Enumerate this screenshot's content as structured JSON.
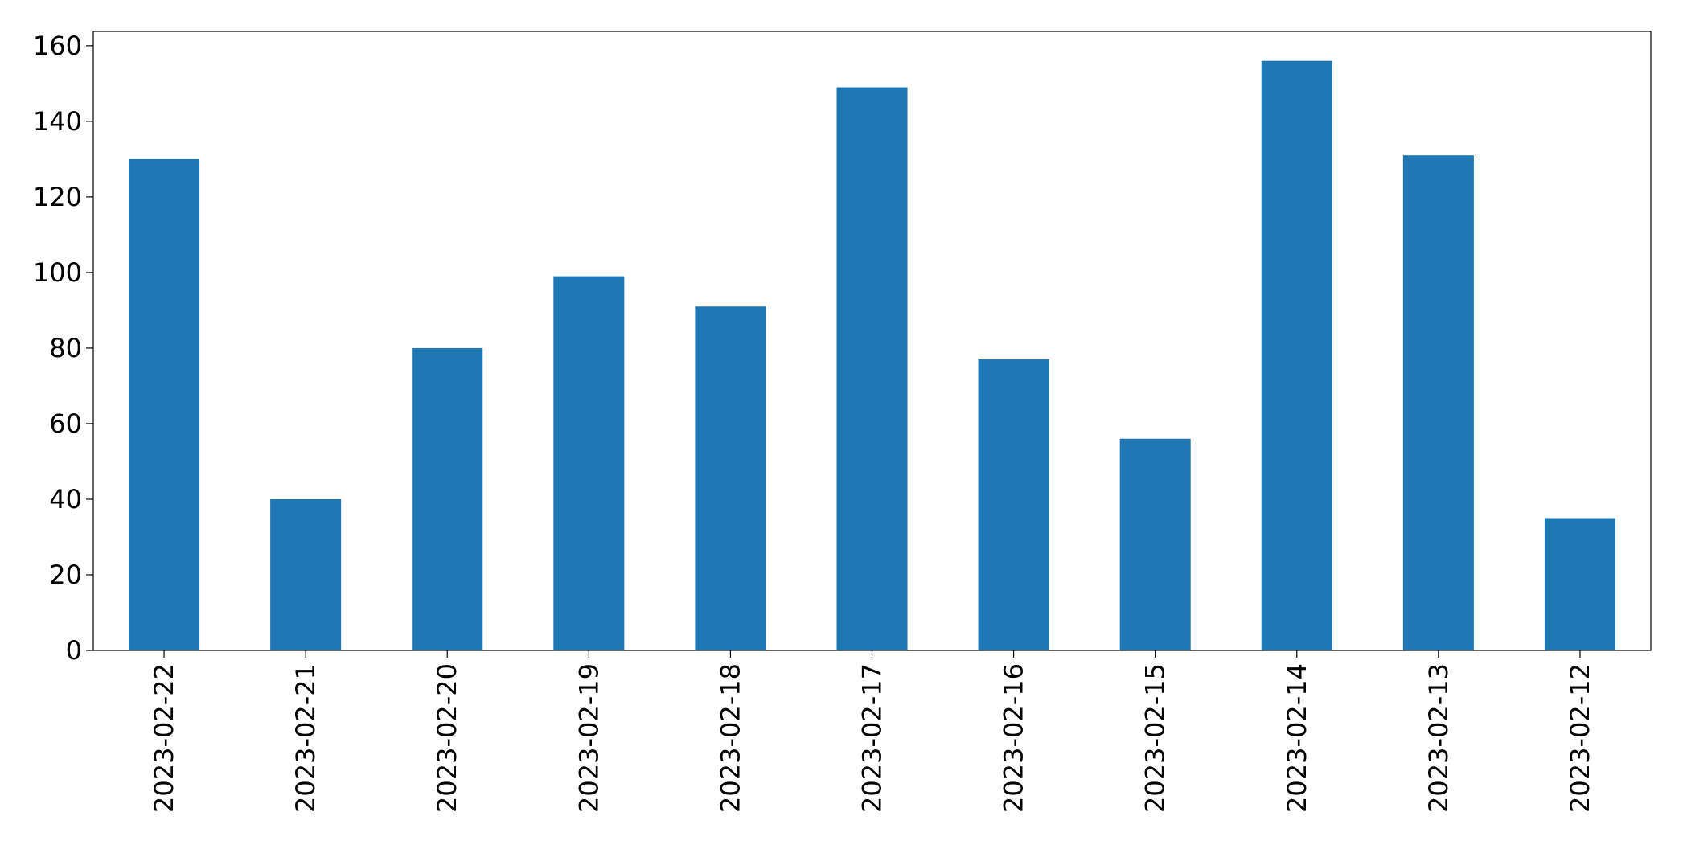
{
  "chart_data": {
    "type": "bar",
    "categories": [
      "2023-02-22",
      "2023-02-21",
      "2023-02-20",
      "2023-02-19",
      "2023-02-18",
      "2023-02-17",
      "2023-02-16",
      "2023-02-15",
      "2023-02-14",
      "2023-02-13",
      "2023-02-12"
    ],
    "values": [
      130,
      40,
      80,
      99,
      91,
      149,
      77,
      56,
      156,
      131,
      35
    ],
    "color": "#1f77b4",
    "ylim": [
      0,
      163.8
    ],
    "yticks": [
      0,
      20,
      40,
      60,
      80,
      100,
      120,
      140,
      160
    ],
    "grid": false
  }
}
